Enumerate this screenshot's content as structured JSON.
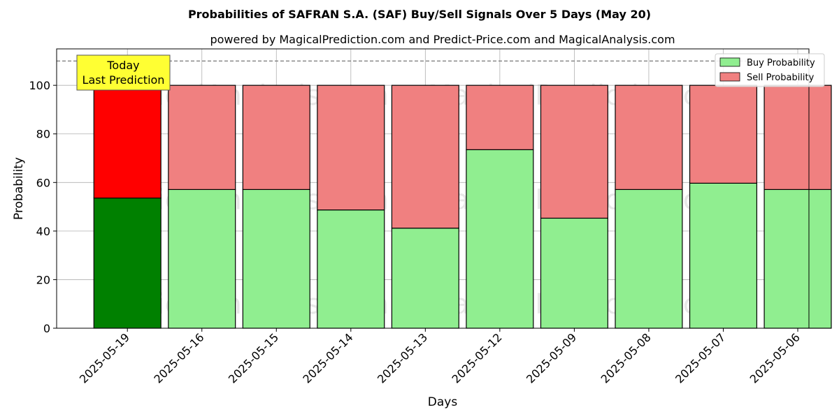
{
  "chart_data": {
    "type": "bar",
    "stacked": true,
    "title": "Probabilities of SAFRAN S.A. (SAF) Buy/Sell Signals Over 5 Days (May 20)",
    "subtitle": "powered by MagicalPrediction.com and Predict-Price.com and MagicalAnalysis.com",
    "xlabel": "Days",
    "ylabel": "Probability",
    "ylim": [
      0,
      115
    ],
    "yticks": [
      0,
      20,
      40,
      60,
      80,
      100
    ],
    "grid": true,
    "legend_position": "top-right",
    "categories": [
      "2025-05-19",
      "2025-05-16",
      "2025-05-15",
      "2025-05-14",
      "2025-05-13",
      "2025-05-12",
      "2025-05-09",
      "2025-05-08",
      "2025-05-07",
      "2025-05-06"
    ],
    "series": [
      {
        "name": "Buy Probability",
        "values": [
          53.6,
          57.1,
          57.1,
          48.7,
          41.2,
          73.5,
          45.3,
          57.1,
          59.7,
          57.1
        ],
        "color": "#90ee90",
        "highlight_color": "#008000"
      },
      {
        "name": "Sell Probability",
        "values": [
          46.4,
          42.9,
          42.9,
          51.3,
          58.8,
          26.5,
          54.7,
          42.9,
          40.3,
          42.9
        ],
        "color": "#f08080",
        "highlight_color": "#ff0000"
      }
    ],
    "highlight_index": 0,
    "reference_line": 110,
    "annotation": {
      "line1": "Today",
      "line2": "Last Prediction",
      "color": "#ffff33"
    },
    "watermarks": [
      "MagicalAnalysis.com",
      "MagicalPrediction.com"
    ]
  }
}
